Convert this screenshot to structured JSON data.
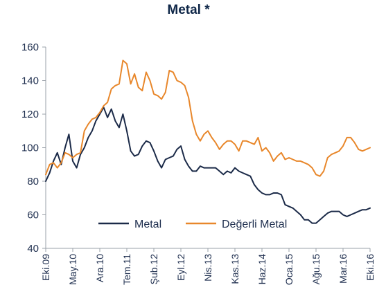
{
  "chart_data": {
    "type": "line",
    "title": "Metal *",
    "xlabel": "",
    "ylabel": "",
    "ylim": [
      40,
      160
    ],
    "yticks": [
      40,
      60,
      80,
      100,
      120,
      140,
      160
    ],
    "grid": false,
    "legend_position": "bottom-center",
    "x_tick_labels": [
      "Eki.09",
      "May.10",
      "Ara.10",
      "Tem.11",
      "Şub.12",
      "Eyl.12",
      "Nis.13",
      "Kas.13",
      "Haz.14",
      "Oca.15",
      "Ağu.15",
      "Mar.16",
      "Eki.16"
    ],
    "x": [
      "2009-10",
      "2009-11",
      "2009-12",
      "2010-01",
      "2010-02",
      "2010-03",
      "2010-04",
      "2010-05",
      "2010-06",
      "2010-07",
      "2010-08",
      "2010-09",
      "2010-10",
      "2010-11",
      "2010-12",
      "2011-01",
      "2011-02",
      "2011-03",
      "2011-04",
      "2011-05",
      "2011-06",
      "2011-07",
      "2011-08",
      "2011-09",
      "2011-10",
      "2011-11",
      "2011-12",
      "2012-01",
      "2012-02",
      "2012-03",
      "2012-04",
      "2012-05",
      "2012-06",
      "2012-07",
      "2012-08",
      "2012-09",
      "2012-10",
      "2012-11",
      "2012-12",
      "2013-01",
      "2013-02",
      "2013-03",
      "2013-04",
      "2013-05",
      "2013-06",
      "2013-07",
      "2013-08",
      "2013-09",
      "2013-10",
      "2013-11",
      "2013-12",
      "2014-01",
      "2014-02",
      "2014-03",
      "2014-04",
      "2014-05",
      "2014-06",
      "2014-07",
      "2014-08",
      "2014-09",
      "2014-10",
      "2014-11",
      "2014-12",
      "2015-01",
      "2015-02",
      "2015-03",
      "2015-04",
      "2015-05",
      "2015-06",
      "2015-07",
      "2015-08",
      "2015-09",
      "2015-10",
      "2015-11",
      "2015-12",
      "2016-01",
      "2016-02",
      "2016-03",
      "2016-04",
      "2016-05",
      "2016-06",
      "2016-07",
      "2016-08",
      "2016-09",
      "2016-10"
    ],
    "series": [
      {
        "name": "Metal",
        "color": "#1b2a48",
        "values": [
          80,
          85,
          92,
          97,
          90,
          100,
          108,
          92,
          88,
          96,
          100,
          106,
          110,
          116,
          120,
          124,
          118,
          123,
          116,
          112,
          120,
          110,
          98,
          95,
          96,
          101,
          104,
          103,
          98,
          92,
          88,
          93,
          94,
          95,
          99,
          101,
          93,
          89,
          86,
          86,
          89,
          88,
          88,
          88,
          88,
          86,
          84,
          86,
          85,
          88,
          86,
          85,
          84,
          83,
          78,
          75,
          73,
          72,
          72,
          73,
          73,
          72,
          66,
          65,
          64,
          62,
          60,
          57,
          57,
          55,
          55,
          57,
          59,
          61,
          62,
          62,
          62,
          60,
          59,
          60,
          61,
          62,
          63,
          63,
          64
        ]
      },
      {
        "name": "Değerli Metal",
        "color": "#e8872b",
        "values": [
          84,
          90,
          91,
          88,
          91,
          97,
          96,
          94,
          96,
          97,
          110,
          114,
          117,
          118,
          121,
          125,
          127,
          135,
          137,
          138,
          152,
          150,
          138,
          144,
          136,
          134,
          145,
          140,
          132,
          131,
          129,
          133,
          146,
          145,
          140,
          139,
          137,
          130,
          116,
          108,
          104,
          108,
          110,
          106,
          103,
          99,
          102,
          104,
          104,
          102,
          98,
          104,
          104,
          103,
          102,
          106,
          98,
          100,
          97,
          92,
          95,
          97,
          93,
          94,
          93,
          92,
          92,
          91,
          90,
          88,
          84,
          83,
          86,
          94,
          96,
          97,
          98,
          101,
          106,
          106,
          103,
          99,
          98,
          99,
          100
        ]
      }
    ]
  }
}
